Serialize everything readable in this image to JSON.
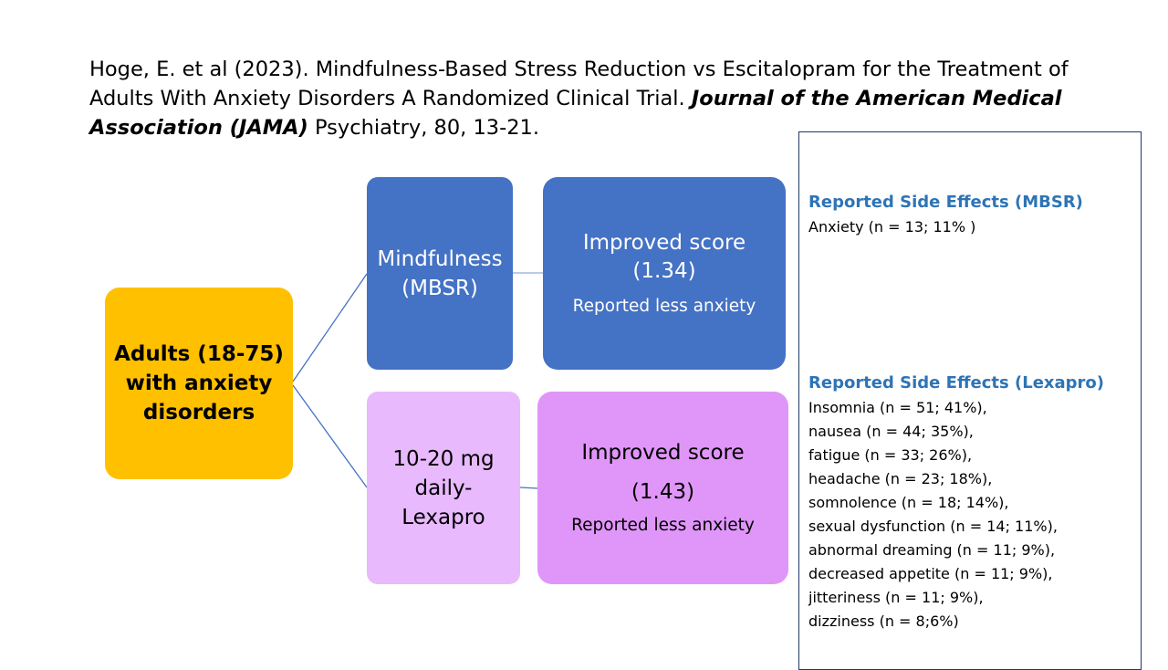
{
  "citation": {
    "text_before": "Hoge, E. et al (2023). Mindfulness-Based Stress Reduction vs Escitalopram for the Treatment of Adults With Anxiety Disorders A Randomized Clinical Trial.",
    "journal": "Journal of the American Medical Association (JAMA)",
    "text_after": "Psychiatry, 80, 13-21."
  },
  "root": {
    "label": "Adults (18-75) with anxiety disorders"
  },
  "branches": {
    "mbsr": {
      "label": "Mindfulness (MBSR)",
      "result_title": "Improved score",
      "result_value": "(1.34)",
      "result_note": "Reported less anxiety"
    },
    "lexapro": {
      "label": "10-20 mg daily-Lexapro",
      "result_title": "Improved score",
      "result_value": "(1.43)",
      "result_note": "Reported less anxiety"
    }
  },
  "side_effects": {
    "mbsr": {
      "heading": "Reported Side Effects (MBSR)",
      "items": [
        "Anxiety (n = 13; 11% )"
      ]
    },
    "lexapro": {
      "heading": "Reported Side Effects (Lexapro)",
      "items": [
        "Insomnia (n = 51; 41%),",
        "nausea (n = 44; 35%),",
        "fatigue (n = 33; 26%),",
        "headache (n = 23; 18%),",
        "somnolence (n = 18; 14%),",
        "sexual dysfunction (n = 14; 11%),",
        "abnormal dreaming (n = 11; 9%),",
        "decreased appetite (n = 11; 9%),",
        "jitteriness (n = 11; 9%),",
        "dizziness (n = 8;6%)"
      ]
    }
  },
  "colors": {
    "root_fill": "#ffc000",
    "mbsr_fill": "#4472c4",
    "lexapro_fill": "#e8b9fc",
    "lexapro_result_fill": "#df96f8",
    "heading_color": "#2e74b5",
    "connector": "#4472c4"
  }
}
